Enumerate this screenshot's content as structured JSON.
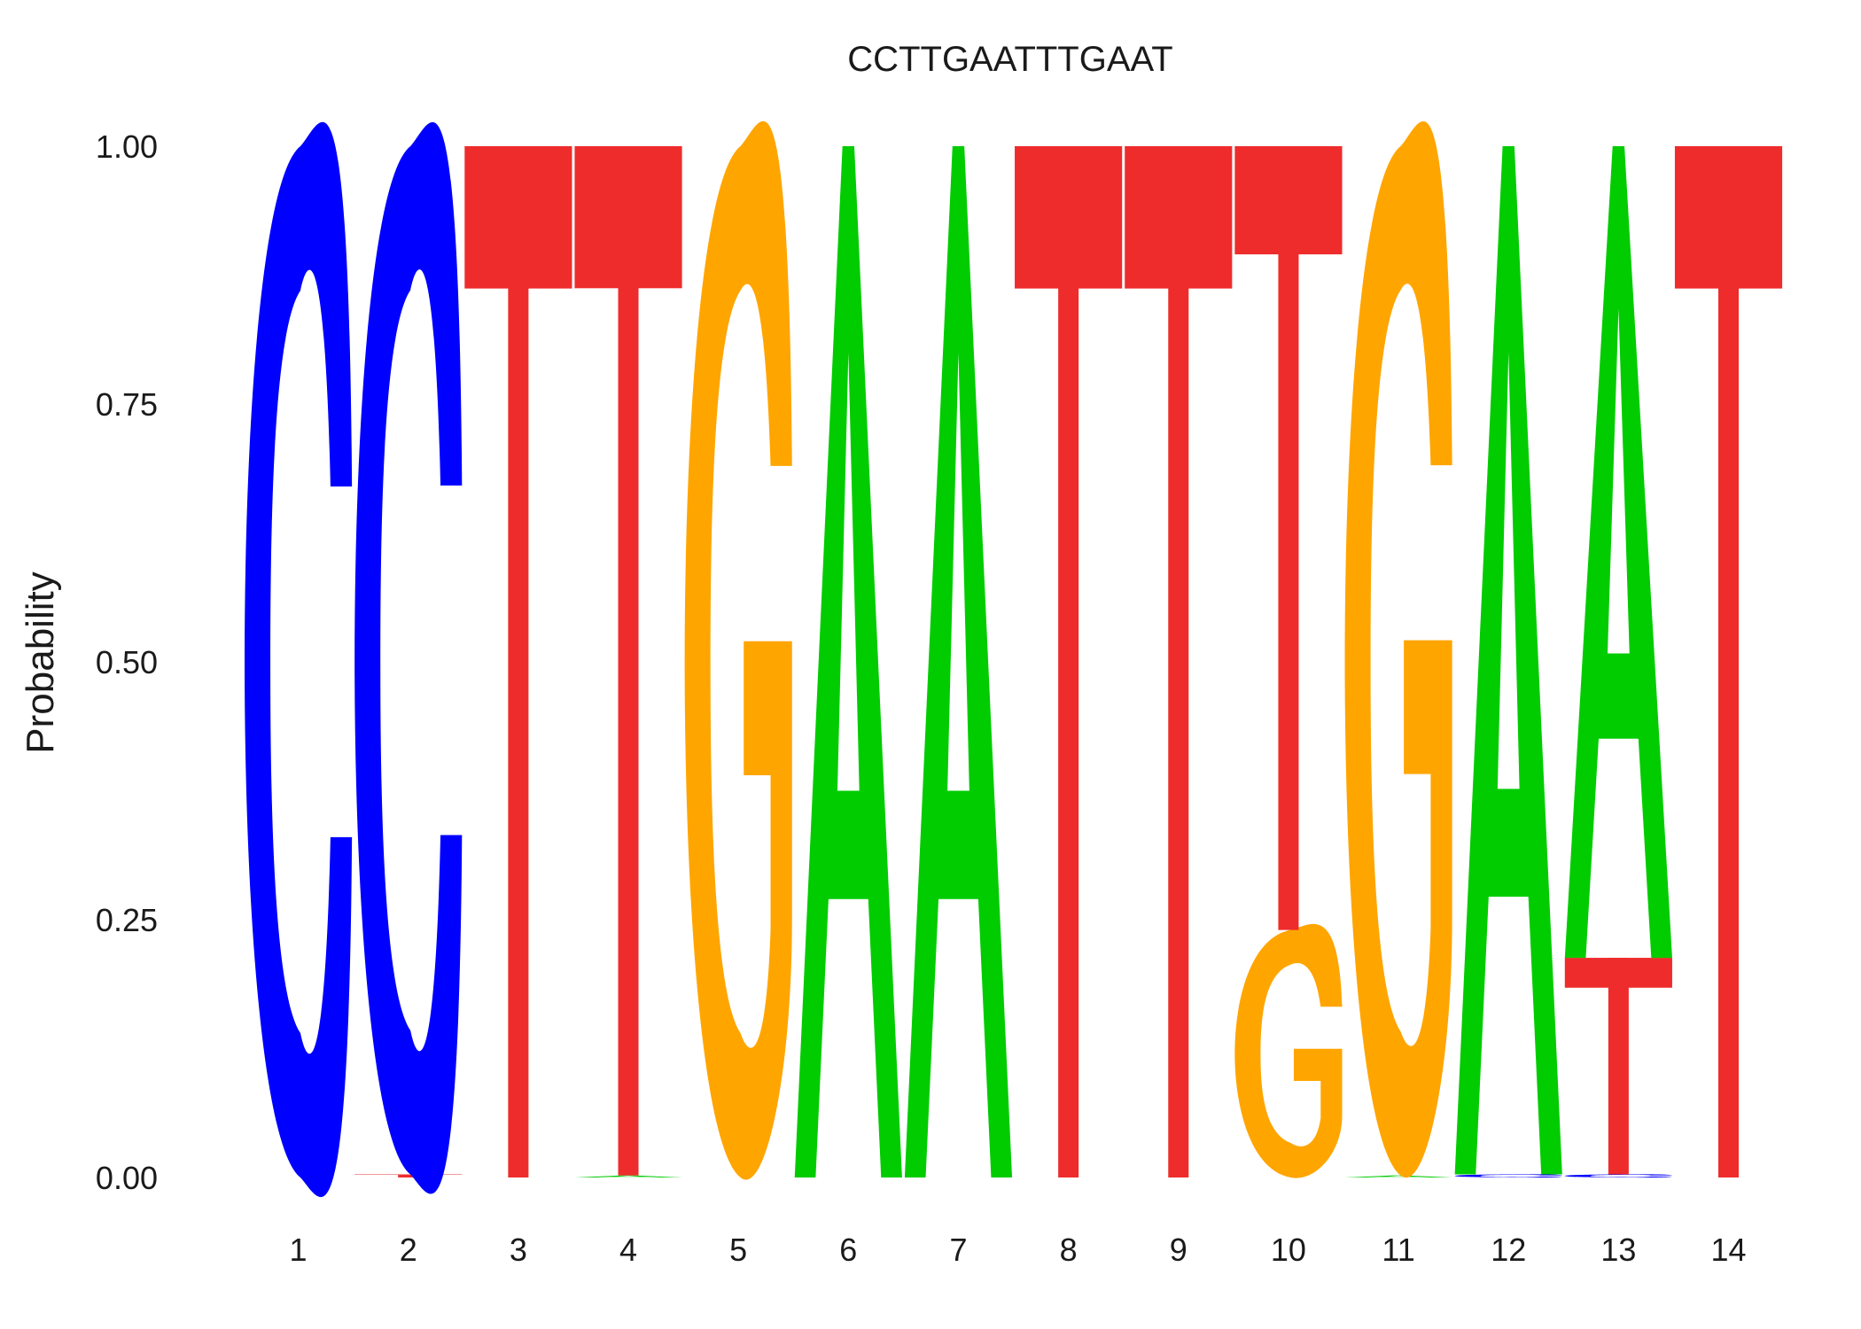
{
  "chart_data": {
    "type": "sequence-logo",
    "title": "CCTTGAATTTGAAT",
    "ylabel": "Probability",
    "xlabel": "",
    "ylim": [
      0,
      1
    ],
    "yticks": [
      "0.00",
      "0.25",
      "0.50",
      "0.75",
      "1.00"
    ],
    "positions": [
      "1",
      "2",
      "3",
      "4",
      "5",
      "6",
      "7",
      "8",
      "9",
      "10",
      "11",
      "12",
      "13",
      "14"
    ],
    "letter_colors": {
      "A": "#00cc00",
      "C": "#0000ff",
      "G": "#ffa500",
      "T": "#ee2c2c"
    },
    "columns": [
      [
        {
          "letter": "C",
          "p": 1.0
        }
      ],
      [
        {
          "letter": "T",
          "p": 0.003
        },
        {
          "letter": "C",
          "p": 0.997
        }
      ],
      [
        {
          "letter": "T",
          "p": 1.0
        }
      ],
      [
        {
          "letter": "A",
          "p": 0.002
        },
        {
          "letter": "T",
          "p": 0.998
        }
      ],
      [
        {
          "letter": "G",
          "p": 1.0
        }
      ],
      [
        {
          "letter": "A",
          "p": 1.0
        }
      ],
      [
        {
          "letter": "A",
          "p": 1.0
        }
      ],
      [
        {
          "letter": "T",
          "p": 1.0
        }
      ],
      [
        {
          "letter": "T",
          "p": 1.0
        }
      ],
      [
        {
          "letter": "G",
          "p": 0.24
        },
        {
          "letter": "T",
          "p": 0.76
        }
      ],
      [
        {
          "letter": "A",
          "p": 0.002
        },
        {
          "letter": "G",
          "p": 0.998
        }
      ],
      [
        {
          "letter": "C",
          "p": 0.003
        },
        {
          "letter": "A",
          "p": 0.997
        }
      ],
      [
        {
          "letter": "C",
          "p": 0.003
        },
        {
          "letter": "T",
          "p": 0.21
        },
        {
          "letter": "A",
          "p": 0.787
        }
      ],
      [
        {
          "letter": "T",
          "p": 1.0
        }
      ]
    ]
  }
}
